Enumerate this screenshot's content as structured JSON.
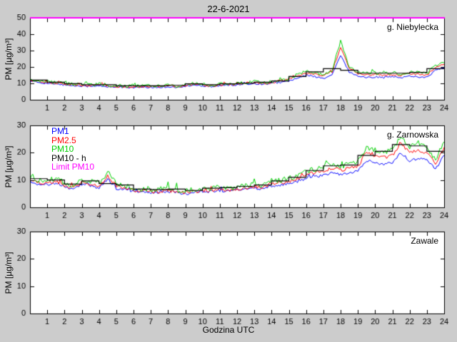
{
  "title": "22-6-2021",
  "xlabel": "Godzina UTC",
  "ylabel": "PM [µg/m³]",
  "colors": {
    "pm1": "#0000ff",
    "pm25": "#ff0000",
    "pm10": "#00d000",
    "pm10_hourly": "#000000",
    "limit_pm10": "#ff00ff",
    "figure_background": "#cccccc",
    "plot_background": "#ffffff"
  },
  "legend": [
    {
      "label": "PM1",
      "color": "#0000ff"
    },
    {
      "label": "PM2.5",
      "color": "#ff0000"
    },
    {
      "label": "PM10",
      "color": "#00d000"
    },
    {
      "label": "PM10 - h",
      "color": "#000000"
    },
    {
      "label": "Limit PM10",
      "color": "#ff00ff"
    }
  ],
  "x_ticks": [
    1,
    2,
    3,
    4,
    5,
    6,
    7,
    8,
    9,
    10,
    11,
    12,
    13,
    14,
    15,
    16,
    17,
    18,
    19,
    20,
    21,
    22,
    23,
    24
  ],
  "chart_data": [
    {
      "type": "line",
      "station": "g. Niebylecka",
      "x_range": [
        0,
        24
      ],
      "x_step_hours": 0.5,
      "ylim": [
        0,
        50
      ],
      "yticks": [
        0,
        10,
        20,
        30,
        40,
        50
      ],
      "limit_pm10": 50,
      "series": [
        {
          "name": "PM1",
          "color": "#0000ff",
          "values": [
            11.5,
            10.5,
            10,
            9.5,
            9,
            8.5,
            8.5,
            8,
            8.5,
            8,
            7.5,
            7.5,
            7.5,
            7.5,
            7.5,
            7.5,
            8,
            7.5,
            8,
            9,
            8.5,
            8,
            8.5,
            9,
            9,
            9.5,
            10,
            9.5,
            10,
            10.5,
            11.5,
            13,
            15,
            14,
            13,
            15,
            27,
            17,
            14.5,
            13.5,
            14,
            13.5,
            14,
            13.5,
            14.5,
            14,
            13.5,
            18,
            19.5
          ]
        },
        {
          "name": "PM2.5",
          "color": "#ff0000",
          "values": [
            12,
            11,
            10.5,
            10,
            9.5,
            9,
            9,
            8.5,
            9,
            8.5,
            8,
            8,
            8,
            8,
            8,
            8,
            8.5,
            8,
            8.5,
            9.5,
            9,
            8.5,
            9,
            9.5,
            9.5,
            10,
            10.5,
            10,
            10.5,
            11.5,
            12.5,
            14.5,
            16.5,
            15.5,
            14.5,
            17,
            32,
            19,
            16,
            15,
            15.5,
            15,
            15.5,
            15,
            16,
            15.5,
            15,
            20,
            21.5
          ]
        },
        {
          "name": "PM10",
          "color": "#00d000",
          "values": [
            12.5,
            11.5,
            11,
            10.5,
            10,
            9.5,
            9.5,
            9,
            9.5,
            9,
            8.5,
            8.5,
            8.5,
            8.5,
            8.5,
            8.5,
            9,
            8.5,
            9,
            10,
            9.5,
            9,
            9.5,
            10,
            10,
            10.5,
            11,
            10.5,
            11,
            12,
            13,
            15.5,
            17.5,
            16.5,
            15.5,
            18,
            36,
            20,
            17,
            16,
            16.5,
            16,
            16.5,
            16,
            17,
            16.5,
            16,
            21,
            22.5
          ]
        },
        {
          "name": "PM10 - h",
          "color": "#000000",
          "style": "step",
          "values": [
            12,
            10.7,
            9.8,
            9.2,
            9.2,
            8.5,
            8.5,
            8.5,
            8.8,
            9.7,
            9.2,
            9.7,
            10.2,
            10.7,
            11.5,
            14.2,
            17,
            19,
            18,
            16.2,
            16.2,
            16.2,
            16.7,
            19
          ]
        }
      ]
    },
    {
      "type": "line",
      "station": "g. Zarnowska",
      "x_range": [
        0,
        24
      ],
      "x_step_hours": 0.5,
      "ylim": [
        0,
        30
      ],
      "yticks": [
        0,
        10,
        20,
        30
      ],
      "series": [
        {
          "name": "PM1",
          "color": "#0000ff",
          "values": [
            9.5,
            8.5,
            8,
            9,
            7.5,
            6.5,
            8.5,
            8,
            7,
            10.5,
            7,
            6.5,
            5.8,
            5.4,
            5.4,
            5.4,
            5.8,
            5.4,
            5,
            5.4,
            5.8,
            5.8,
            6.2,
            5.8,
            6.2,
            6.7,
            7,
            6.7,
            7.8,
            8.2,
            8.7,
            9.5,
            10.5,
            11.3,
            11.7,
            12.8,
            12,
            12.8,
            13.2,
            17,
            16.5,
            15.5,
            16.5,
            20,
            17,
            18,
            17.5,
            13.8,
            19
          ]
        },
        {
          "name": "PM2.5",
          "color": "#ff0000",
          "values": [
            10,
            9,
            8.5,
            9.5,
            8,
            7,
            9,
            8.5,
            7.5,
            11.5,
            7.5,
            7,
            6.2,
            5.8,
            5.8,
            5.8,
            6.2,
            5.8,
            5.4,
            5.8,
            6.2,
            6.2,
            6.7,
            6.2,
            6.7,
            7.2,
            7.6,
            7.2,
            8.5,
            9,
            9.5,
            10.5,
            11.8,
            12.8,
            13.2,
            14.5,
            13.5,
            14.5,
            15,
            20,
            19,
            18,
            19,
            23.5,
            20,
            21,
            20,
            15.8,
            22
          ]
        },
        {
          "name": "PM10",
          "color": "#00d000",
          "values": [
            11,
            10,
            9.5,
            10.5,
            9,
            8,
            10,
            9.5,
            8.5,
            13,
            8.5,
            8,
            7,
            6.5,
            6.5,
            6.5,
            7,
            6.5,
            6,
            6.5,
            7,
            7,
            7.5,
            7,
            7.5,
            8,
            8.5,
            8,
            9.5,
            10,
            10.5,
            11.5,
            13,
            14,
            14.5,
            16,
            15,
            16,
            16.5,
            22,
            21,
            20,
            21,
            26,
            22,
            23.5,
            22,
            17.5,
            24
          ]
        },
        {
          "name": "PM10 - h",
          "color": "#000000",
          "style": "step",
          "values": [
            10.5,
            10,
            8.5,
            9.7,
            8.7,
            8.2,
            6.7,
            6.5,
            6.7,
            6.2,
            7,
            7.2,
            7.7,
            8.2,
            9.7,
            11,
            13.5,
            15.2,
            15.5,
            19,
            20.5,
            23,
            22.5,
            20.5
          ]
        }
      ]
    },
    {
      "type": "line",
      "station": "Zawale",
      "x_range": [
        0,
        24
      ],
      "ylim": [
        0,
        30
      ],
      "yticks": [
        0,
        10,
        20,
        30
      ],
      "series": []
    }
  ]
}
